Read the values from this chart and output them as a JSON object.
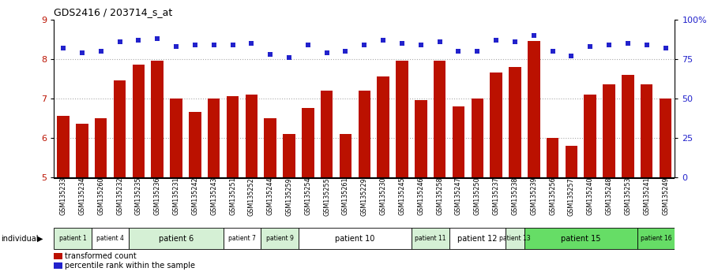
{
  "title": "GDS2416 / 203714_s_at",
  "samples": [
    "GSM135233",
    "GSM135234",
    "GSM135260",
    "GSM135232",
    "GSM135235",
    "GSM135236",
    "GSM135231",
    "GSM135242",
    "GSM135243",
    "GSM135251",
    "GSM135252",
    "GSM135244",
    "GSM135259",
    "GSM135254",
    "GSM135255",
    "GSM135261",
    "GSM135229",
    "GSM135230",
    "GSM135245",
    "GSM135246",
    "GSM135258",
    "GSM135247",
    "GSM135250",
    "GSM135237",
    "GSM135238",
    "GSM135239",
    "GSM135256",
    "GSM135257",
    "GSM135240",
    "GSM135248",
    "GSM135253",
    "GSM135241",
    "GSM135249"
  ],
  "bar_values": [
    6.55,
    6.35,
    6.5,
    7.45,
    7.85,
    7.95,
    7.0,
    6.65,
    7.0,
    7.05,
    7.1,
    6.5,
    6.1,
    6.75,
    7.2,
    6.1,
    7.2,
    7.55,
    7.95,
    6.95,
    7.95,
    6.8,
    7.0,
    7.65,
    7.8,
    8.45,
    6.0,
    5.8,
    7.1,
    7.35,
    7.6,
    7.35,
    7.0
  ],
  "percentile_values": [
    82,
    79,
    80,
    86,
    87,
    88,
    83,
    84,
    84,
    84,
    85,
    78,
    76,
    84,
    79,
    80,
    84,
    87,
    85,
    84,
    86,
    80,
    80,
    87,
    86,
    90,
    80,
    77,
    83,
    84,
    85,
    84,
    82
  ],
  "patients": [
    {
      "label": "patient 1",
      "start": 0,
      "end": 2,
      "color": "#d5f0d5"
    },
    {
      "label": "patient 4",
      "start": 2,
      "end": 4,
      "color": "#ffffff"
    },
    {
      "label": "patient 6",
      "start": 4,
      "end": 9,
      "color": "#d5f0d5"
    },
    {
      "label": "patient 7",
      "start": 9,
      "end": 11,
      "color": "#ffffff"
    },
    {
      "label": "patient 9",
      "start": 11,
      "end": 13,
      "color": "#d5f0d5"
    },
    {
      "label": "patient 10",
      "start": 13,
      "end": 19,
      "color": "#ffffff"
    },
    {
      "label": "patient 11",
      "start": 19,
      "end": 21,
      "color": "#d5f0d5"
    },
    {
      "label": "patient 12",
      "start": 21,
      "end": 24,
      "color": "#ffffff"
    },
    {
      "label": "patient 13",
      "start": 24,
      "end": 25,
      "color": "#d5f0d5"
    },
    {
      "label": "patient 15",
      "start": 25,
      "end": 31,
      "color": "#66dd66"
    },
    {
      "label": "patient 16",
      "start": 31,
      "end": 33,
      "color": "#66dd66"
    }
  ],
  "ylim_left": [
    5,
    9
  ],
  "ylim_right": [
    0,
    100
  ],
  "yticks_left": [
    5,
    6,
    7,
    8,
    9
  ],
  "yticks_right": [
    0,
    25,
    50,
    75,
    100
  ],
  "ytick_labels_right": [
    "0",
    "25",
    "50",
    "75",
    "100%"
  ],
  "bar_color": "#bb1100",
  "dot_color": "#2222cc",
  "grid_color": "#aaaaaa",
  "legend_red_label": "transformed count",
  "legend_blue_label": "percentile rank within the sample",
  "individual_label": "individual"
}
